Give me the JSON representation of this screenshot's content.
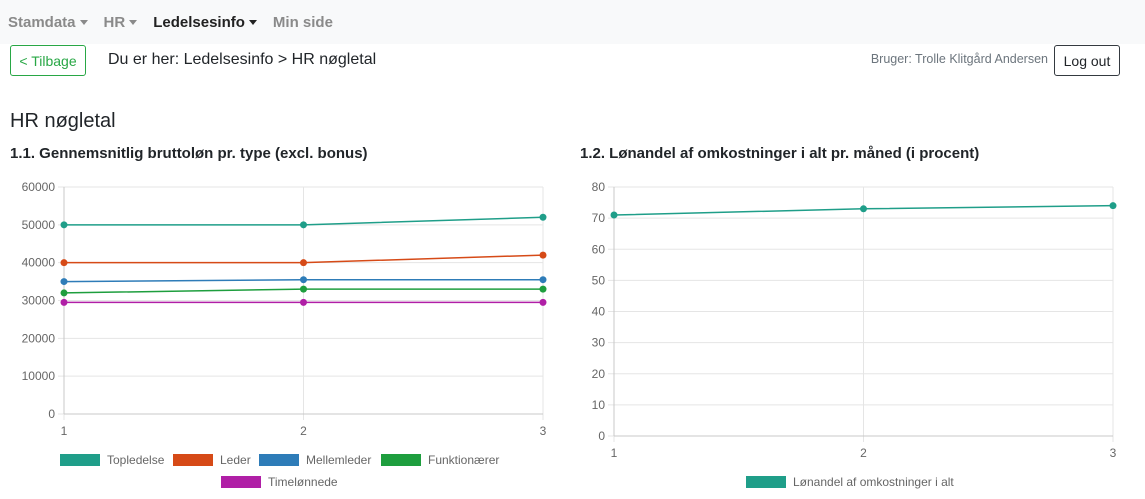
{
  "nav": {
    "items": [
      {
        "label": "Stamdata",
        "caret": true,
        "active": false
      },
      {
        "label": "HR",
        "caret": true,
        "active": false
      },
      {
        "label": "Ledelsesinfo",
        "caret": true,
        "active": true
      },
      {
        "label": "Min side",
        "caret": false,
        "active": false
      }
    ]
  },
  "back_label": "< Tilbage",
  "breadcrumb": "Du er her: Ledelsesinfo > HR nøgletal",
  "user_label": "Bruger: Trolle Klitgård Andersen",
  "logout_label": "Log out",
  "page_title": "HR nøgletal",
  "chart_data": [
    {
      "type": "line",
      "title": "1.1.  Gennemsnitlig bruttoløn pr. type (excl. bonus)",
      "x": [
        1,
        2,
        3
      ],
      "xticks": [
        "1",
        "2",
        "3"
      ],
      "ylim": [
        0,
        60000
      ],
      "yticks": [
        0,
        10000,
        20000,
        30000,
        40000,
        50000,
        60000
      ],
      "grid": true,
      "legend": "bottom",
      "series": [
        {
          "name": "Topledelse",
          "values": [
            50000,
            50000,
            52000
          ],
          "color": "#1f9e89"
        },
        {
          "name": "Leder",
          "values": [
            40000,
            40000,
            42000
          ],
          "color": "#d64a17"
        },
        {
          "name": "Mellemleder",
          "values": [
            35000,
            35500,
            35500
          ],
          "color": "#2e7cb8"
        },
        {
          "name": "Funktionærer",
          "values": [
            32000,
            33000,
            33000
          ],
          "color": "#1e9e3e"
        },
        {
          "name": "Timelønnede",
          "values": [
            29500,
            29500,
            29500
          ],
          "color": "#b01fa6"
        }
      ]
    },
    {
      "type": "line",
      "title": "1.2.  Lønandel af omkostninger i alt pr. måned (i procent)",
      "x": [
        1,
        2,
        3
      ],
      "xticks": [
        "1",
        "2",
        "3"
      ],
      "ylim": [
        0,
        80
      ],
      "yticks": [
        0,
        10,
        20,
        30,
        40,
        50,
        60,
        70,
        80
      ],
      "grid": true,
      "legend": "bottom",
      "series": [
        {
          "name": "Lønandel af omkostninger i alt",
          "values": [
            71,
            73,
            74
          ],
          "color": "#1f9e89"
        }
      ]
    }
  ]
}
